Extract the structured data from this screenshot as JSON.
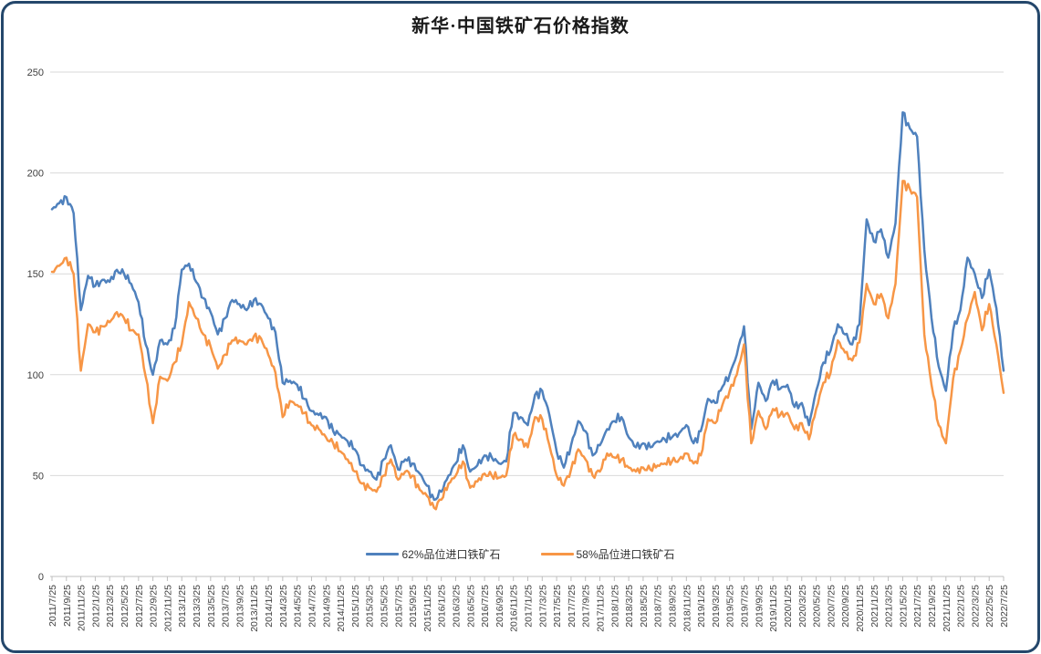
{
  "window": {
    "background_color": "#FFFFFF",
    "border_color": "#24476B"
  },
  "chart_data": {
    "type": "line",
    "title": "新华·中国铁矿石价格指数",
    "xlabel": "",
    "ylabel": "",
    "ylim": [
      0,
      250
    ],
    "y_ticks": [
      0,
      50,
      100,
      150,
      200,
      250
    ],
    "grid": "horizontal",
    "legend_position": "bottom-center",
    "x_start": "2011/7/25",
    "x_step": "1 month per data point, axis tick every 2 months",
    "x_tick_labels": [
      "2011/7/25",
      "2011/9/25",
      "2011/11/25",
      "2012/1/25",
      "2012/3/25",
      "2012/5/25",
      "2012/7/25",
      "2012/9/25",
      "2012/11/25",
      "2013/1/25",
      "2013/3/25",
      "2013/5/25",
      "2013/7/25",
      "2013/9/25",
      "2013/11/25",
      "2014/1/25",
      "2014/3/25",
      "2014/5/25",
      "2014/7/25",
      "2014/9/25",
      "2014/11/25",
      "2015/1/25",
      "2015/3/25",
      "2015/5/25",
      "2015/7/25",
      "2015/9/25",
      "2015/11/25",
      "2016/1/25",
      "2016/3/25",
      "2016/5/25",
      "2016/7/25",
      "2016/9/25",
      "2016/11/25",
      "2017/1/25",
      "2017/3/25",
      "2017/5/25",
      "2017/7/25",
      "2017/9/25",
      "2017/11/25",
      "2018/1/25",
      "2018/3/25",
      "2018/5/25",
      "2018/7/25",
      "2018/9/25",
      "2018/11/25",
      "2019/1/25",
      "2019/3/25",
      "2019/5/25",
      "2019/7/25",
      "2019/9/25",
      "2019/11/25",
      "2020/1/25",
      "2020/3/25",
      "2020/5/25",
      "2020/7/25",
      "2020/9/25",
      "2020/11/25",
      "2021/1/25",
      "2021/3/25",
      "2021/5/25",
      "2021/7/25",
      "2021/9/25",
      "2021/11/25",
      "2022/1/25",
      "2022/3/25",
      "2022/5/25",
      "2022/7/25"
    ],
    "series": [
      {
        "name": "62%品位进口铁矿石",
        "color": "#4F81BD",
        "values": [
          182,
          185,
          188,
          180,
          132,
          149,
          144,
          147,
          146,
          152,
          150,
          145,
          136,
          115,
          100,
          117,
          115,
          123,
          152,
          155,
          146,
          138,
          131,
          120,
          128,
          137,
          135,
          132,
          137,
          135,
          128,
          121,
          96,
          97,
          95,
          88,
          82,
          80,
          79,
          72,
          70,
          67,
          63,
          55,
          52,
          48,
          58,
          65,
          53,
          58,
          56,
          51,
          45,
          38,
          42,
          50,
          56,
          65,
          52,
          55,
          60,
          59,
          56,
          57,
          81,
          79,
          75,
          90,
          92,
          80,
          62,
          54,
          65,
          77,
          72,
          60,
          65,
          73,
          77,
          79,
          69,
          64,
          66,
          64,
          67,
          68,
          69,
          71,
          75,
          66,
          72,
          88,
          86,
          94,
          100,
          110,
          124,
          73,
          96,
          87,
          97,
          93,
          95,
          84,
          86,
          75,
          92,
          106,
          112,
          125,
          120,
          115,
          125,
          177,
          166,
          172,
          158,
          175,
          230,
          222,
          218,
          162,
          128,
          104,
          92,
          122,
          132,
          158,
          150,
          138,
          152,
          133,
          102
        ]
      },
      {
        "name": "58%品位进口铁矿石",
        "color": "#F79646",
        "values": [
          151,
          154,
          158,
          150,
          102,
          125,
          121,
          124,
          126,
          131,
          128,
          122,
          120,
          99,
          76,
          99,
          97,
          106,
          115,
          136,
          128,
          120,
          114,
          103,
          110,
          117,
          117,
          115,
          119,
          118,
          110,
          101,
          79,
          87,
          85,
          81,
          75,
          73,
          69,
          66,
          62,
          58,
          52,
          46,
          44,
          42,
          50,
          58,
          48,
          52,
          50,
          43,
          40,
          34,
          38,
          46,
          50,
          57,
          44,
          47,
          51,
          50,
          49,
          50,
          70,
          68,
          64,
          79,
          78,
          65,
          50,
          45,
          53,
          63,
          58,
          50,
          52,
          61,
          59,
          58,
          54,
          52,
          54,
          53,
          55,
          56,
          57,
          58,
          61,
          56,
          60,
          78,
          76,
          85,
          92,
          100,
          115,
          66,
          82,
          73,
          83,
          80,
          81,
          73,
          76,
          68,
          83,
          96,
          101,
          117,
          111,
          107,
          116,
          145,
          135,
          140,
          128,
          145,
          196,
          192,
          188,
          120,
          95,
          75,
          66,
          98,
          112,
          128,
          141,
          122,
          135,
          115,
          91
        ]
      }
    ],
    "axis_colors": {
      "gridline": "#D9D9D9",
      "axis_line": "#BFBFBF",
      "tick_label": "#404040"
    }
  }
}
